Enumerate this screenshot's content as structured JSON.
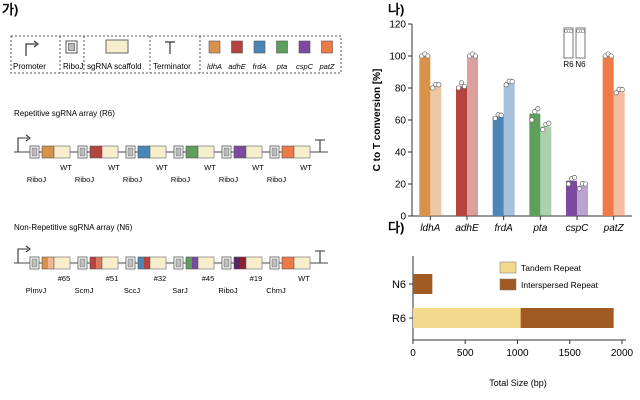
{
  "panels": {
    "a": "가)",
    "b": "나)",
    "c": "다)"
  },
  "legend": {
    "promoter": "Promoter",
    "riboj": "RiboJ",
    "scaffold": "sgRNA scaffold",
    "terminator": "Terminator",
    "genes": [
      "ldhA",
      "adhE",
      "frdA",
      "pta",
      "cspC",
      "patZ"
    ]
  },
  "colors": {
    "ldhA": "#d9924a",
    "adhE": "#b5433e",
    "frdA": "#4a86b8",
    "pta": "#5e9f5c",
    "cspC": "#7c4a9e",
    "patZ": "#ee7a48",
    "scaffold": "#f7eecd",
    "riboj_fill": "#bdbdbd",
    "tandem": "#f3d98c",
    "interspersed": "#a05a22"
  },
  "array_r6": {
    "title": "Repetitive sgRNA array (R6)",
    "top_labels": [
      "WT",
      "WT",
      "WT",
      "WT",
      "WT",
      "WT"
    ],
    "bottom_labels": [
      "RiboJ",
      "RiboJ",
      "RiboJ",
      "RiboJ",
      "RiboJ",
      "RiboJ"
    ]
  },
  "array_n6": {
    "title": "Non-Repetitive sgRNA array (N6)",
    "top_labels": [
      "#65",
      "#51",
      "#32",
      "#45",
      "#19",
      "WT"
    ],
    "bottom_labels": [
      "PlmvJ",
      "ScmJ",
      "SccJ",
      "SarJ",
      "RiboJ",
      "ChmJ"
    ]
  },
  "chart_data": [
    {
      "type": "bar",
      "ylabel": "C to T conversion [%]",
      "ylim": [
        0,
        120
      ],
      "yticks": [
        "0",
        "20",
        "40",
        "60",
        "80",
        "100",
        "120"
      ],
      "categories": [
        "ldhA",
        "adhE",
        "frdA",
        "pta",
        "cspC",
        "patZ"
      ],
      "legend_labels": [
        "R6",
        "N6"
      ],
      "series": [
        {
          "name": "R6",
          "values": [
            100,
            81,
            62,
            64,
            22,
            100
          ],
          "points": [
            [
              100,
              100,
              100
            ],
            [
              80,
              82,
              81
            ],
            [
              61,
              62,
              63
            ],
            [
              60,
              64,
              67
            ],
            [
              20,
              22,
              24
            ],
            [
              100,
              100,
              100
            ]
          ]
        },
        {
          "name": "N6",
          "values": [
            81,
            100,
            83,
            56,
            19,
            78
          ],
          "points": [
            [
              80,
              81,
              82
            ],
            [
              100,
              100,
              100
            ],
            [
              82,
              83,
              84
            ],
            [
              54,
              56,
              58
            ],
            [
              17,
              19,
              20
            ],
            [
              77,
              78,
              79
            ]
          ]
        }
      ]
    },
    {
      "type": "bar",
      "orientation": "horizontal",
      "stacked": true,
      "xlabel": "Total Size (bp)",
      "xlim": [
        0,
        2000
      ],
      "xticks": [
        "0",
        "500",
        "1000",
        "1500",
        "2000"
      ],
      "categories": [
        "N6",
        "R6"
      ],
      "series": [
        {
          "name": "Tandem Repeat",
          "values": [
            0,
            1030
          ]
        },
        {
          "name": "Interspersed Repeat",
          "values": [
            185,
            890
          ]
        }
      ]
    }
  ]
}
